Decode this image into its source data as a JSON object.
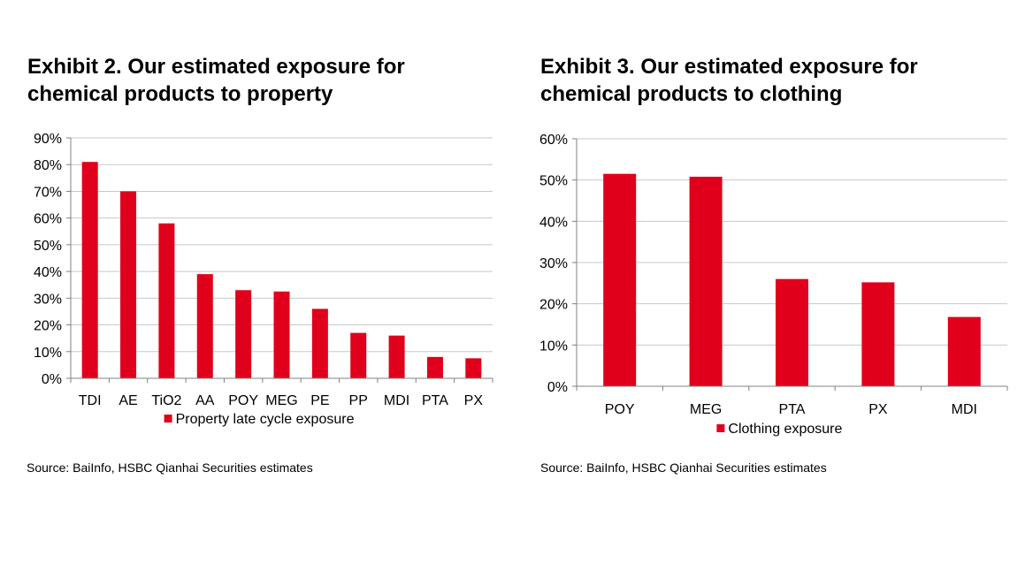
{
  "colors": {
    "bar": "#e0001b",
    "grid": "#c8c8c8",
    "axis": "#808080"
  },
  "exhibits": [
    {
      "title_line1": "Exhibit 2. Our estimated exposure for",
      "title_line2": "chemical products to property",
      "source": "Source: BaiInfo, HSBC Qianhai Securities estimates"
    },
    {
      "title_line1": "Exhibit 3. Our estimated exposure for",
      "title_line2": "chemical products to clothing",
      "source": "Source: BaiInfo, HSBC Qianhai Securities estimates"
    }
  ],
  "chart_data": [
    {
      "type": "bar",
      "title": "Exhibit 2. Our estimated exposure for chemical products to property",
      "categories": [
        "TDI",
        "AE",
        "TiO2",
        "AA",
        "POY",
        "MEG",
        "PE",
        "PP",
        "MDI",
        "PTA",
        "PX"
      ],
      "series": [
        {
          "name": "Property late cycle exposure",
          "values": [
            81,
            70,
            58,
            39,
            33,
            32.5,
            26,
            17,
            16,
            8,
            7.5
          ]
        }
      ],
      "ylim": [
        0,
        90
      ],
      "yticks": [
        "0%",
        "10%",
        "20%",
        "30%",
        "40%",
        "50%",
        "60%",
        "70%",
        "80%",
        "90%"
      ],
      "grid": true,
      "legend": "bottom"
    },
    {
      "type": "bar",
      "title": "Exhibit 3. Our estimated exposure for chemical products to clothing",
      "categories": [
        "POY",
        "MEG",
        "PTA",
        "PX",
        "MDI"
      ],
      "series": [
        {
          "name": "Clothing exposure",
          "values": [
            51.5,
            50.8,
            26,
            25.2,
            16.8
          ]
        }
      ],
      "ylim": [
        0,
        60
      ],
      "yticks": [
        "0%",
        "10%",
        "20%",
        "30%",
        "40%",
        "50%",
        "60%"
      ],
      "grid": true,
      "legend": "bottom"
    }
  ]
}
